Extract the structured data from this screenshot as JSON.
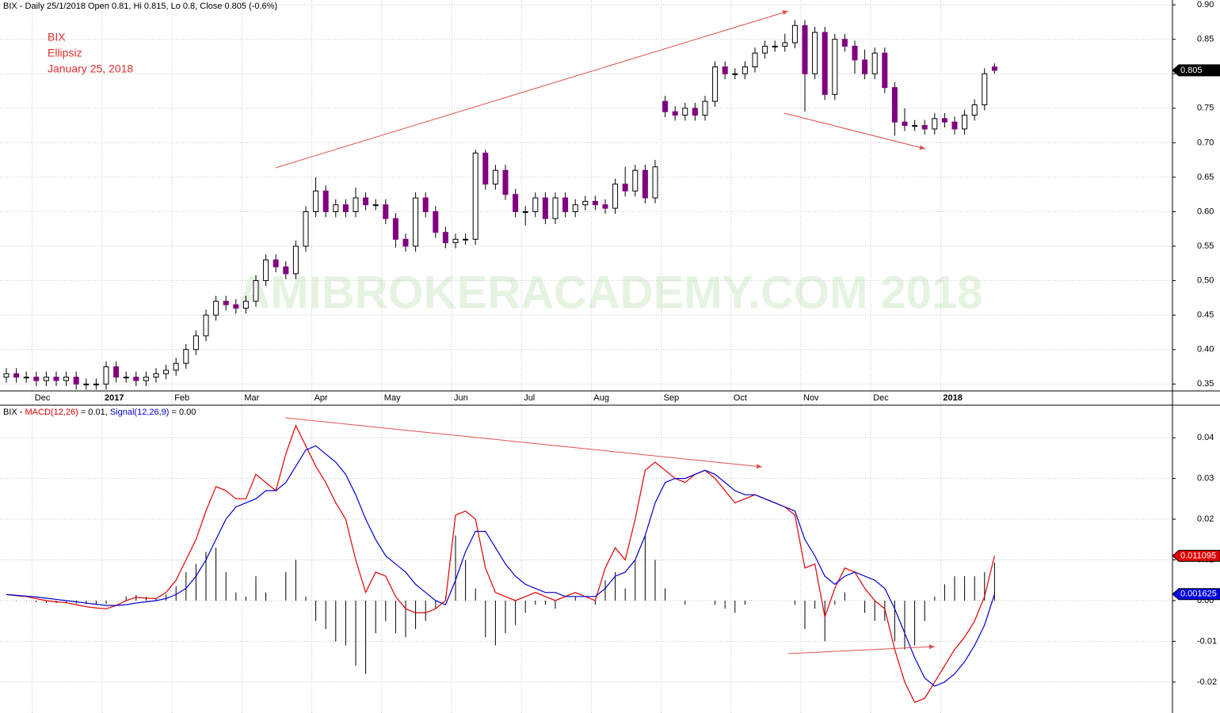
{
  "chart_data": [
    {
      "type": "candlestick",
      "title": "BIX - Daily 25/1/2018 Open 0.81, Hi 0.815, Lo 0.8, Close 0.805 (-0.6%)",
      "annotations": [
        "BIX",
        "Ellipsiz",
        "January 25, 2018"
      ],
      "watermark": "AMIBROKERACADEMY.COM  2018",
      "last_label": "0.805",
      "up_color": "#ffffff",
      "down_color": "#800080",
      "categories": [
        null,
        null,
        null,
        "Dec",
        null,
        null,
        null,
        null,
        null,
        null,
        "2017",
        null,
        null,
        null,
        null,
        null,
        null,
        "Feb",
        null,
        null,
        null,
        null,
        null,
        null,
        "Mar",
        null,
        null,
        null,
        null,
        null,
        null,
        "Apr",
        null,
        null,
        null,
        null,
        null,
        null,
        "May",
        null,
        null,
        null,
        null,
        null,
        null,
        "Jun",
        null,
        null,
        null,
        null,
        null,
        null,
        "Jul",
        null,
        null,
        null,
        null,
        null,
        null,
        "Aug",
        null,
        null,
        null,
        null,
        null,
        null,
        "Sep",
        null,
        null,
        null,
        null,
        null,
        null,
        "Oct",
        null,
        null,
        null,
        null,
        null,
        null,
        "Nov",
        null,
        null,
        null,
        null,
        null,
        null,
        "Dec",
        null,
        null,
        null,
        null,
        null,
        null,
        "2018",
        null,
        null,
        null,
        null,
        null
      ],
      "open": [
        0.36,
        0.365,
        0.36,
        0.36,
        0.355,
        0.36,
        0.355,
        0.36,
        0.35,
        0.35,
        0.35,
        0.375,
        0.36,
        0.36,
        0.355,
        0.36,
        0.365,
        0.37,
        0.38,
        0.4,
        0.42,
        0.45,
        0.47,
        0.465,
        0.46,
        0.47,
        0.5,
        0.53,
        0.52,
        0.51,
        0.55,
        0.6,
        0.63,
        0.6,
        0.61,
        0.6,
        0.62,
        0.61,
        0.61,
        0.59,
        0.56,
        0.55,
        0.62,
        0.6,
        0.57,
        0.555,
        0.56,
        0.56,
        0.685,
        0.64,
        0.66,
        0.625,
        0.6,
        0.6,
        0.62,
        0.59,
        0.62,
        0.6,
        0.61,
        0.615,
        0.61,
        0.605,
        0.64,
        0.63,
        0.66,
        0.62,
        0.76,
        0.745,
        0.74,
        0.75,
        0.74,
        0.76,
        0.81,
        0.8,
        0.8,
        0.81,
        0.83,
        0.84,
        0.84,
        0.845,
        0.87,
        0.8,
        0.86,
        0.77,
        0.85,
        0.84,
        0.82,
        0.8,
        0.83,
        0.78,
        0.73,
        0.725,
        0.725,
        0.72,
        0.735,
        0.73,
        0.72,
        0.74,
        0.755,
        0.81
      ],
      "high": [
        0.373,
        0.373,
        0.368,
        0.368,
        0.368,
        0.368,
        0.368,
        0.368,
        0.358,
        0.358,
        0.383,
        0.383,
        0.368,
        0.368,
        0.368,
        0.373,
        0.378,
        0.388,
        0.408,
        0.428,
        0.458,
        0.478,
        0.478,
        0.473,
        0.478,
        0.508,
        0.538,
        0.538,
        0.528,
        0.558,
        0.608,
        0.65,
        0.638,
        0.618,
        0.618,
        0.635,
        0.628,
        0.618,
        0.618,
        0.598,
        0.568,
        0.628,
        0.628,
        0.608,
        0.578,
        0.568,
        0.568,
        0.69,
        0.69,
        0.668,
        0.668,
        0.633,
        0.608,
        0.628,
        0.628,
        0.628,
        0.628,
        0.618,
        0.623,
        0.623,
        0.618,
        0.648,
        0.665,
        0.668,
        0.668,
        0.675,
        0.768,
        0.753,
        0.758,
        0.758,
        0.768,
        0.818,
        0.818,
        0.808,
        0.818,
        0.838,
        0.848,
        0.848,
        0.858,
        0.878,
        0.878,
        0.868,
        0.868,
        0.858,
        0.858,
        0.848,
        0.835,
        0.838,
        0.838,
        0.788,
        0.75,
        0.733,
        0.733,
        0.743,
        0.743,
        0.738,
        0.748,
        0.763,
        0.808,
        0.815
      ],
      "low": [
        0.352,
        0.352,
        0.352,
        0.347,
        0.347,
        0.347,
        0.347,
        0.342,
        0.342,
        0.342,
        0.342,
        0.352,
        0.352,
        0.347,
        0.347,
        0.352,
        0.357,
        0.362,
        0.372,
        0.392,
        0.412,
        0.442,
        0.457,
        0.452,
        0.452,
        0.462,
        0.492,
        0.512,
        0.502,
        0.502,
        0.542,
        0.592,
        0.592,
        0.592,
        0.592,
        0.592,
        0.602,
        0.602,
        0.582,
        0.548,
        0.542,
        0.542,
        0.592,
        0.562,
        0.547,
        0.547,
        0.552,
        0.552,
        0.632,
        0.632,
        0.617,
        0.592,
        0.58,
        0.592,
        0.582,
        0.582,
        0.592,
        0.592,
        0.602,
        0.602,
        0.597,
        0.597,
        0.622,
        0.622,
        0.612,
        0.612,
        0.737,
        0.732,
        0.732,
        0.732,
        0.732,
        0.752,
        0.792,
        0.792,
        0.792,
        0.802,
        0.822,
        0.832,
        0.832,
        0.837,
        0.745,
        0.792,
        0.762,
        0.762,
        0.832,
        0.8,
        0.792,
        0.792,
        0.772,
        0.71,
        0.717,
        0.717,
        0.712,
        0.712,
        0.722,
        0.712,
        0.712,
        0.732,
        0.747,
        0.8
      ],
      "close": [
        0.365,
        0.36,
        0.36,
        0.355,
        0.36,
        0.355,
        0.36,
        0.35,
        0.35,
        0.35,
        0.375,
        0.36,
        0.36,
        0.355,
        0.36,
        0.365,
        0.37,
        0.38,
        0.4,
        0.42,
        0.45,
        0.47,
        0.465,
        0.46,
        0.47,
        0.5,
        0.53,
        0.52,
        0.51,
        0.55,
        0.6,
        0.63,
        0.6,
        0.61,
        0.6,
        0.62,
        0.61,
        0.61,
        0.59,
        0.56,
        0.55,
        0.62,
        0.6,
        0.57,
        0.555,
        0.56,
        0.56,
        0.685,
        0.64,
        0.66,
        0.625,
        0.6,
        0.6,
        0.62,
        0.59,
        0.62,
        0.6,
        0.61,
        0.615,
        0.61,
        0.605,
        0.64,
        0.63,
        0.66,
        0.62,
        0.665,
        0.745,
        0.74,
        0.75,
        0.74,
        0.76,
        0.81,
        0.8,
        0.8,
        0.81,
        0.83,
        0.84,
        0.84,
        0.845,
        0.87,
        0.8,
        0.86,
        0.77,
        0.85,
        0.84,
        0.82,
        0.8,
        0.83,
        0.78,
        0.73,
        0.725,
        0.725,
        0.72,
        0.735,
        0.73,
        0.72,
        0.74,
        0.755,
        0.8,
        0.805
      ],
      "ylim": [
        0.34,
        0.907
      ],
      "yticks": [
        0.35,
        {
          "value": 0.4,
          "label": "0.40"
        },
        0.45,
        {
          "value": 0.5,
          "label": "0.50"
        },
        0.55,
        {
          "value": 0.6,
          "label": "0.60"
        },
        0.65,
        {
          "value": 0.7,
          "label": "0.70"
        },
        0.75,
        {
          "value": 0.8,
          "label": "0.80"
        },
        0.85,
        {
          "value": 0.9,
          "label": "0.90"
        }
      ],
      "grid": true
    },
    {
      "type": "line",
      "title": "BIX -",
      "series": [
        {
          "name": "MACD(12,26)",
          "legend_value": "= 0.01,",
          "color": "#e00000",
          "last_label": "0.011095",
          "values": [
            0.0015,
            0.0012,
            0.001,
            0.0005,
            0,
            -0.0003,
            -0.0005,
            -0.001,
            -0.0015,
            -0.0018,
            -0.002,
            -0.0012,
            0,
            0.0008,
            0.0006,
            0.0005,
            0.002,
            0.005,
            0.01,
            0.015,
            0.022,
            0.028,
            0.027,
            0.025,
            0.025,
            0.031,
            0.029,
            0.027,
            0.036,
            0.043,
            0.038,
            0.033,
            0.029,
            0.024,
            0.02,
            0.01,
            0.002,
            0.007,
            0.006,
            0.001,
            -0.002,
            -0.003,
            -0.003,
            -0.002,
            0,
            0.021,
            0.022,
            0.02,
            0.008,
            0.002,
            0.001,
            0,
            0.001,
            0.002,
            0.001,
            0,
            0.001,
            0.002,
            0.001,
            0,
            0.008,
            0.013,
            0.01,
            0.02,
            0.032,
            0.034,
            0.032,
            0.03,
            0.029,
            0.031,
            0.032,
            0.03,
            0.027,
            0.024,
            0.025,
            0.026,
            0.025,
            0.024,
            0.023,
            0.021,
            0.008,
            0.009,
            -0.004,
            0.003,
            0.008,
            0.007,
            0.003,
            0,
            -0.002,
            -0.012,
            -0.02,
            -0.025,
            -0.024,
            -0.02,
            -0.016,
            -0.012,
            -0.009,
            -0.005,
            0.001,
            0.011
          ]
        },
        {
          "name": "Signal(12,26,9)",
          "legend_value": "= 0.00",
          "color": "#0000d0",
          "last_label": "0.001625",
          "values": [
            0.0015,
            0.0013,
            0.0011,
            0.0009,
            0.0006,
            0.0003,
            0,
            -0.0003,
            -0.0006,
            -0.0009,
            -0.0012,
            -0.0012,
            -0.001,
            -0.0006,
            -0.0003,
            0,
            0.0005,
            0.0015,
            0.003,
            0.006,
            0.01,
            0.015,
            0.02,
            0.023,
            0.024,
            0.025,
            0.027,
            0.027,
            0.029,
            0.033,
            0.037,
            0.038,
            0.036,
            0.034,
            0.031,
            0.026,
            0.02,
            0.015,
            0.011,
            0.009,
            0.007,
            0.004,
            0.002,
            0,
            -0.001,
            0.005,
            0.012,
            0.017,
            0.017,
            0.013,
            0.009,
            0.006,
            0.004,
            0.003,
            0.002,
            0.002,
            0.001,
            0.001,
            0.001,
            0.001,
            0.003,
            0.006,
            0.007,
            0.01,
            0.016,
            0.024,
            0.029,
            0.03,
            0.03,
            0.031,
            0.032,
            0.031,
            0.029,
            0.027,
            0.026,
            0.026,
            0.025,
            0.024,
            0.023,
            0.022,
            0.015,
            0.011,
            0.006,
            0.004,
            0.006,
            0.007,
            0.006,
            0.005,
            0.003,
            -0.002,
            -0.008,
            -0.014,
            -0.019,
            -0.021,
            -0.02,
            -0.018,
            -0.015,
            -0.011,
            -0.006,
            0.0016
          ]
        }
      ],
      "histogram": {
        "color": "#000000",
        "values": [
          0,
          -0.0001,
          -0.0001,
          -0.0004,
          -0.0006,
          -0.0006,
          -0.0005,
          -0.0007,
          -0.0009,
          -0.0009,
          -0.0008,
          0,
          0.001,
          0.0014,
          0.0009,
          0.0005,
          0.0015,
          0.0035,
          0.007,
          0.009,
          0.012,
          0.013,
          0.007,
          0.002,
          0.001,
          0.006,
          0.002,
          0,
          0.007,
          0.01,
          0.001,
          -0.005,
          -0.007,
          -0.01,
          -0.011,
          -0.016,
          -0.018,
          -0.008,
          -0.005,
          -0.008,
          -0.009,
          -0.007,
          -0.005,
          -0.002,
          0.001,
          0.016,
          0.01,
          0.003,
          -0.009,
          -0.011,
          -0.008,
          -0.006,
          -0.003,
          -0.001,
          -0.001,
          -0.002,
          0,
          0.001,
          0,
          -0.001,
          0.005,
          0.007,
          0.003,
          0.01,
          0.016,
          0.01,
          0.003,
          0,
          -0.001,
          0,
          0,
          -0.001,
          -0.002,
          -0.003,
          -0.001,
          0,
          0,
          0,
          0,
          -0.001,
          -0.007,
          -0.002,
          -0.01,
          -0.001,
          0.002,
          0,
          -0.003,
          -0.005,
          -0.005,
          -0.01,
          -0.012,
          -0.011,
          -0.005,
          0.001,
          0.004,
          0.006,
          0.006,
          0.006,
          0.007,
          0.0094
        ]
      },
      "ylim": [
        -0.0276,
        0.0478
      ],
      "yticks": [
        -0.02,
        -0.01,
        {
          "value": 0,
          "label": "0.00"
        },
        0.01,
        0.02,
        0.03,
        0.04
      ],
      "grid": true
    }
  ]
}
